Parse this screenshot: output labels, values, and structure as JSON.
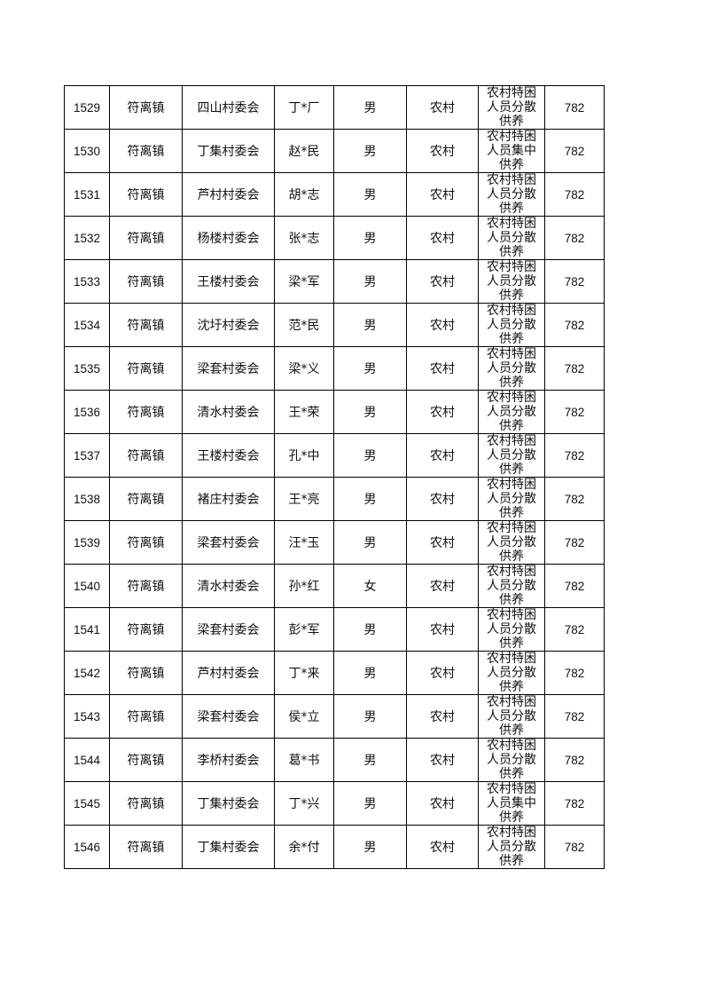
{
  "table": {
    "rows": [
      [
        "1529",
        "符离镇",
        "四山村委会",
        "丁*厂",
        "男",
        "农村",
        "农村特困人员分散供养",
        "782"
      ],
      [
        "1530",
        "符离镇",
        "丁集村委会",
        "赵*民",
        "男",
        "农村",
        "农村特困人员集中供养",
        "782"
      ],
      [
        "1531",
        "符离镇",
        "芦村村委会",
        "胡*志",
        "男",
        "农村",
        "农村特困人员分散供养",
        "782"
      ],
      [
        "1532",
        "符离镇",
        "杨楼村委会",
        "张*志",
        "男",
        "农村",
        "农村特困人员分散供养",
        "782"
      ],
      [
        "1533",
        "符离镇",
        "王楼村委会",
        "梁*军",
        "男",
        "农村",
        "农村特困人员分散供养",
        "782"
      ],
      [
        "1534",
        "符离镇",
        "沈圩村委会",
        "范*民",
        "男",
        "农村",
        "农村特困人员分散供养",
        "782"
      ],
      [
        "1535",
        "符离镇",
        "梁套村委会",
        "梁*义",
        "男",
        "农村",
        "农村特困人员分散供养",
        "782"
      ],
      [
        "1536",
        "符离镇",
        "清水村委会",
        "王*荣",
        "男",
        "农村",
        "农村特困人员分散供养",
        "782"
      ],
      [
        "1537",
        "符离镇",
        "王楼村委会",
        "孔*中",
        "男",
        "农村",
        "农村特困人员分散供养",
        "782"
      ],
      [
        "1538",
        "符离镇",
        "褚庄村委会",
        "王*亮",
        "男",
        "农村",
        "农村特困人员分散供养",
        "782"
      ],
      [
        "1539",
        "符离镇",
        "梁套村委会",
        "汪*玉",
        "男",
        "农村",
        "农村特困人员分散供养",
        "782"
      ],
      [
        "1540",
        "符离镇",
        "清水村委会",
        "孙*红",
        "女",
        "农村",
        "农村特困人员分散供养",
        "782"
      ],
      [
        "1541",
        "符离镇",
        "梁套村委会",
        "彭*军",
        "男",
        "农村",
        "农村特困人员分散供养",
        "782"
      ],
      [
        "1542",
        "符离镇",
        "芦村村委会",
        "丁*来",
        "男",
        "农村",
        "农村特困人员分散供养",
        "782"
      ],
      [
        "1543",
        "符离镇",
        "梁套村委会",
        "侯*立",
        "男",
        "农村",
        "农村特困人员分散供养",
        "782"
      ],
      [
        "1544",
        "符离镇",
        "李桥村委会",
        "葛*书",
        "男",
        "农村",
        "农村特困人员分散供养",
        "782"
      ],
      [
        "1545",
        "符离镇",
        "丁集村委会",
        "丁*兴",
        "男",
        "农村",
        "农村特困人员集中供养",
        "782"
      ],
      [
        "1546",
        "符离镇",
        "丁集村委会",
        "余*付",
        "男",
        "农村",
        "农村特困人员分散供养",
        "782"
      ]
    ]
  }
}
